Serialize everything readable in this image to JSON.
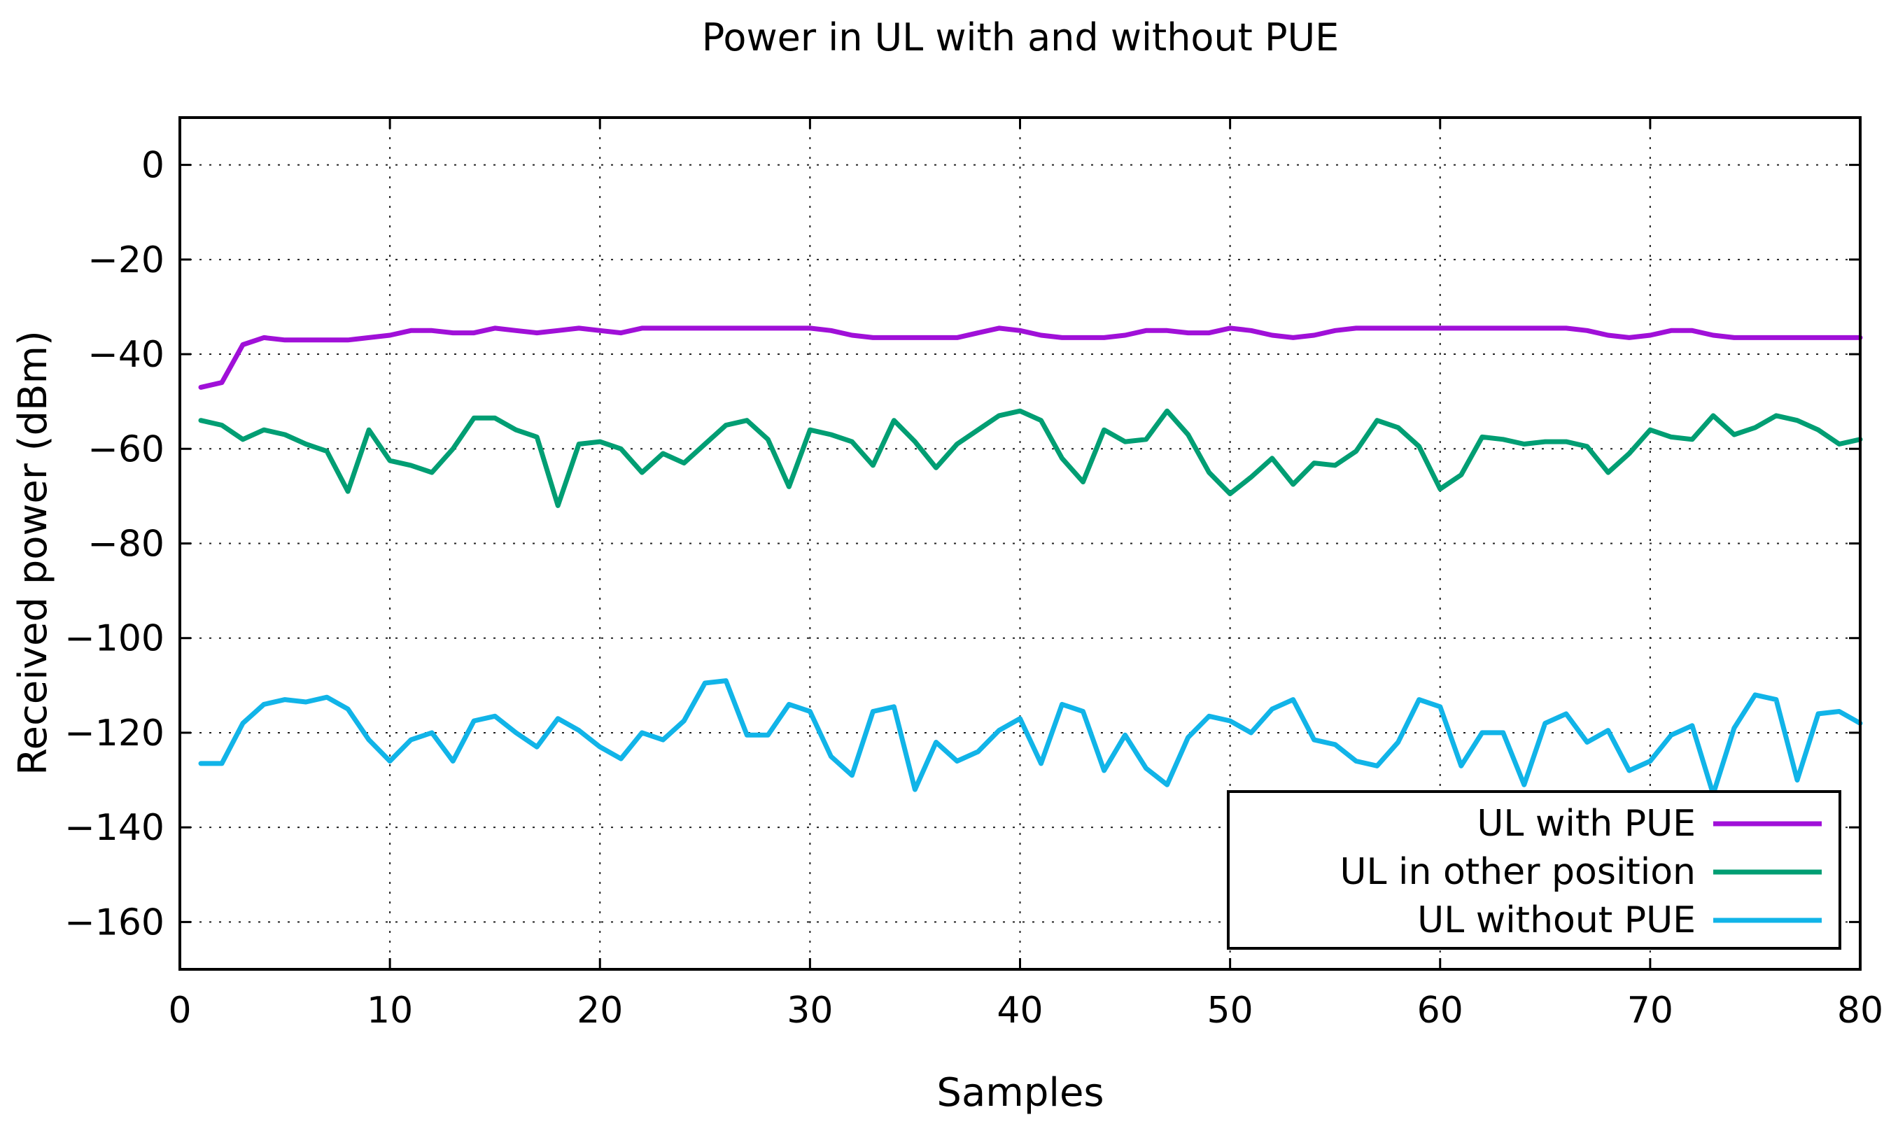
{
  "chart_data": {
    "type": "line",
    "title": "Power in UL with and without PUE",
    "xlabel": "Samples",
    "ylabel": "Received power (dBm)",
    "xlim": [
      0,
      80
    ],
    "ylim": [
      -170,
      10
    ],
    "xticks": [
      0,
      10,
      20,
      30,
      40,
      50,
      60,
      70,
      80
    ],
    "yticks": [
      0,
      -20,
      -40,
      -60,
      -80,
      -100,
      -120,
      -140,
      -160
    ],
    "grid": true,
    "legend_position": "bottom-right",
    "series": [
      {
        "name": "UL with PUE",
        "color": "#a010d8",
        "values": [
          -47,
          -46,
          -38,
          -36.5,
          -37,
          -37,
          -37,
          -37,
          -36.5,
          -36,
          -35,
          -35,
          -35.5,
          -35.5,
          -34.5,
          -35,
          -35.5,
          -35,
          -34.5,
          -35,
          -35.5,
          -34.5,
          -34.5,
          -34.5,
          -34.5,
          -34.5,
          -34.5,
          -34.5,
          -34.5,
          -34.5,
          -35,
          -36,
          -36.5,
          -36.5,
          -36.5,
          -36.5,
          -36.5,
          -35.5,
          -34.5,
          -35,
          -36,
          -36.5,
          -36.5,
          -36.5,
          -36,
          -35,
          -35,
          -35.5,
          -35.5,
          -34.5,
          -35,
          -36,
          -36.5,
          -36,
          -35,
          -34.5,
          -34.5,
          -34.5,
          -34.5,
          -34.5,
          -34.5,
          -34.5,
          -34.5,
          -34.5,
          -34.5,
          -34.5,
          -35,
          -36,
          -36.5,
          -36,
          -35,
          -35,
          -36,
          -36.5,
          -36.5,
          -36.5,
          -36.5,
          -36.5,
          -36.5,
          -36.5
        ]
      },
      {
        "name": "UL in other position",
        "color": "#009e73",
        "values": [
          -54,
          -55,
          -58,
          -56,
          -57,
          -59,
          -60.5,
          -69,
          -56,
          -62.5,
          -63.5,
          -65,
          -60,
          -53.5,
          -53.5,
          -56,
          -57.5,
          -72,
          -59,
          -58.5,
          -60,
          -65,
          -61,
          -63,
          -59,
          -55,
          -54,
          -58,
          -68,
          -56,
          -57,
          -58.5,
          -63.5,
          -54,
          -58.5,
          -64,
          -59,
          -56,
          -53,
          -52,
          -54,
          -62,
          -67,
          -56,
          -58.5,
          -58,
          -52,
          -57,
          -65,
          -69.5,
          -66,
          -62,
          -67.5,
          -63,
          -63.5,
          -60.5,
          -54,
          -55.5,
          -59.5,
          -68.5,
          -65.5,
          -57.5,
          -58,
          -59,
          -58.5,
          -58.5,
          -59.5,
          -65,
          -61,
          -56,
          -57.5,
          -58,
          -53,
          -57,
          -55.5,
          -53,
          -54,
          -56,
          -59,
          -58
        ]
      },
      {
        "name": "UL without PUE",
        "color": "#11b4e8",
        "values": [
          -126.5,
          -126.5,
          -118,
          -114,
          -113,
          -113.5,
          -112.5,
          -115,
          -121.5,
          -126,
          -121.5,
          -120,
          -126,
          -117.5,
          -116.5,
          -120,
          -123,
          -117,
          -119.5,
          -123,
          -125.5,
          -120,
          -121.5,
          -117.5,
          -109.5,
          -109,
          -120.5,
          -120.5,
          -114,
          -115.5,
          -125,
          -129,
          -115.5,
          -114.5,
          -132,
          -122,
          -126,
          -124,
          -119.5,
          -117,
          -126.5,
          -114,
          -115.5,
          -128,
          -120.5,
          -127.5,
          -131,
          -121,
          -116.5,
          -117.5,
          -120,
          -115,
          -113,
          -121.5,
          -122.5,
          -126,
          -127,
          -122,
          -113,
          -114.5,
          -127,
          -120,
          -120,
          -131,
          -118,
          -116,
          -122,
          -119.5,
          -128,
          -126,
          -120.5,
          -118.5,
          -133,
          -119,
          -112,
          -113,
          -130,
          -116,
          -115.5,
          -118
        ]
      }
    ]
  }
}
